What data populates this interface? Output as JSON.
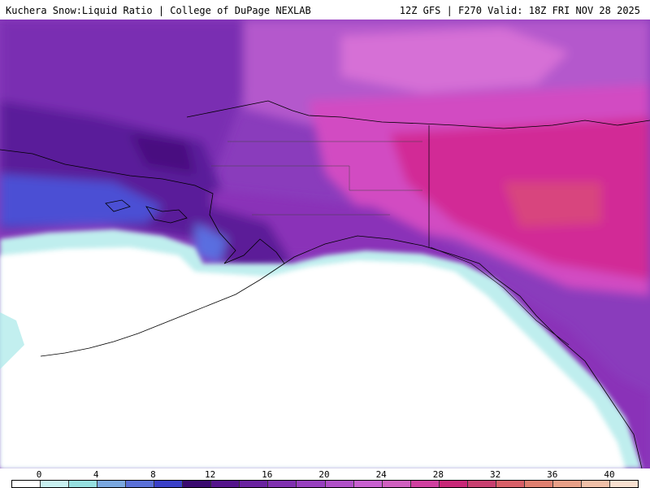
{
  "header": {
    "left_title": "Kuchera Snow:Liquid Ratio | College of DuPage NEXLAB",
    "right_info": "12Z GFS | F270 Valid: 18Z FRI NOV 28 2025"
  },
  "colorbar": {
    "tick_labels": [
      "0",
      "4",
      "8",
      "12",
      "16",
      "20",
      "24",
      "28",
      "32",
      "36",
      "40"
    ],
    "bin_colors": [
      "#ffffff",
      "#c8f0f0",
      "#96e0e0",
      "#7aa8e0",
      "#5a70d8",
      "#3a40c8",
      "#3a0a70",
      "#55148c",
      "#6a22a0",
      "#8030b0",
      "#9840c0",
      "#b050c8",
      "#c860d0",
      "#d060c0",
      "#d040a0",
      "#c82878",
      "#c84070",
      "#d86068",
      "#e08070",
      "#e8a088",
      "#f0c0a8",
      "#f8e0d0"
    ]
  },
  "map": {
    "region": "Alaska",
    "ocean_color": "#ffffff",
    "state_line_color": "#000000",
    "palette": {
      "low_white": "#ffffff",
      "cyan_light": "#c8f0f0",
      "cyan_mid": "#8ee0e0",
      "blue": "#5a6ee0",
      "blue_dark": "#3a3acc",
      "purple_dark": "#5a1a9a",
      "purple": "#7e2db0",
      "violet": "#9c44c4",
      "orchid": "#c060d0",
      "magenta_light": "#d86ad6",
      "magenta": "#d44ac0",
      "pink_deep": "#d02c90",
      "rose": "#d84a82"
    }
  }
}
